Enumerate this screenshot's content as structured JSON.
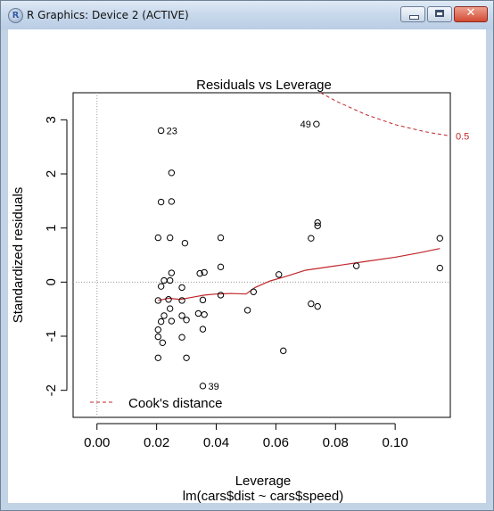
{
  "window": {
    "title": "R Graphics: Device 2 (ACTIVE)",
    "icon_letter": "R",
    "buttons": {
      "minimize": "minimize-icon",
      "maximize": "maximize-icon",
      "close": "close-icon",
      "close_glyph": "✕"
    }
  },
  "chart_data": {
    "type": "scatter",
    "title": "Residuals vs Leverage",
    "xlabel": "Leverage",
    "sublabel": "lm(cars$dist ~ cars$speed)",
    "ylabel": "Standardized residuals",
    "xlim": [
      -0.008,
      0.1185
    ],
    "ylim": [
      -2.5,
      3.5
    ],
    "x_ticks": [
      "0.00",
      "0.02",
      "0.04",
      "0.06",
      "0.08",
      "0.10"
    ],
    "x_tick_values": [
      0.0,
      0.02,
      0.04,
      0.06,
      0.08,
      0.1
    ],
    "y_ticks": [
      "3",
      "2",
      "1",
      "0",
      "-1",
      "-2"
    ],
    "y_tick_values": [
      3,
      2,
      1,
      0,
      -1,
      -2
    ],
    "points": [
      {
        "x": 0.0215,
        "y": 2.8,
        "label": "23"
      },
      {
        "x": 0.0736,
        "y": 2.92,
        "label": "49"
      },
      {
        "x": 0.0355,
        "y": -1.92,
        "label": "39"
      },
      {
        "x": 0.025,
        "y": 2.02
      },
      {
        "x": 0.0215,
        "y": 1.48
      },
      {
        "x": 0.025,
        "y": 1.49
      },
      {
        "x": 0.074,
        "y": 1.1
      },
      {
        "x": 0.074,
        "y": 1.04
      },
      {
        "x": 0.0205,
        "y": 0.82
      },
      {
        "x": 0.0245,
        "y": 0.82
      },
      {
        "x": 0.0295,
        "y": 0.72
      },
      {
        "x": 0.0415,
        "y": 0.82
      },
      {
        "x": 0.0718,
        "y": 0.81
      },
      {
        "x": 0.115,
        "y": 0.81
      },
      {
        "x": 0.087,
        "y": 0.3
      },
      {
        "x": 0.115,
        "y": 0.26
      },
      {
        "x": 0.0415,
        "y": 0.28
      },
      {
        "x": 0.0345,
        "y": 0.16
      },
      {
        "x": 0.036,
        "y": 0.18
      },
      {
        "x": 0.025,
        "y": 0.17
      },
      {
        "x": 0.061,
        "y": 0.14
      },
      {
        "x": 0.0225,
        "y": 0.03
      },
      {
        "x": 0.0245,
        "y": 0.03
      },
      {
        "x": 0.0215,
        "y": -0.08
      },
      {
        "x": 0.0285,
        "y": -0.1
      },
      {
        "x": 0.0525,
        "y": -0.18
      },
      {
        "x": 0.0415,
        "y": -0.24
      },
      {
        "x": 0.0205,
        "y": -0.34
      },
      {
        "x": 0.024,
        "y": -0.32
      },
      {
        "x": 0.0285,
        "y": -0.34
      },
      {
        "x": 0.0355,
        "y": -0.33
      },
      {
        "x": 0.0718,
        "y": -0.4
      },
      {
        "x": 0.074,
        "y": -0.45
      },
      {
        "x": 0.0245,
        "y": -0.49
      },
      {
        "x": 0.0505,
        "y": -0.52
      },
      {
        "x": 0.0225,
        "y": -0.62
      },
      {
        "x": 0.0285,
        "y": -0.62
      },
      {
        "x": 0.034,
        "y": -0.58
      },
      {
        "x": 0.036,
        "y": -0.6
      },
      {
        "x": 0.03,
        "y": -0.7
      },
      {
        "x": 0.0215,
        "y": -0.73
      },
      {
        "x": 0.025,
        "y": -0.72
      },
      {
        "x": 0.0205,
        "y": -0.88
      },
      {
        "x": 0.0355,
        "y": -0.87
      },
      {
        "x": 0.0205,
        "y": -1.01
      },
      {
        "x": 0.0285,
        "y": -1.02
      },
      {
        "x": 0.022,
        "y": -1.12
      },
      {
        "x": 0.0625,
        "y": -1.27
      },
      {
        "x": 0.0205,
        "y": -1.4
      },
      {
        "x": 0.03,
        "y": -1.4
      }
    ],
    "smooth_line": {
      "color": "#c0262b",
      "x": [
        0.0205,
        0.024,
        0.028,
        0.032,
        0.036,
        0.04,
        0.045,
        0.05,
        0.053,
        0.058,
        0.063,
        0.07,
        0.08,
        0.09,
        0.1,
        0.108,
        0.115
      ],
      "y": [
        -0.34,
        -0.3,
        -0.32,
        -0.28,
        -0.24,
        -0.22,
        -0.21,
        -0.22,
        -0.1,
        0.02,
        0.1,
        0.22,
        0.3,
        0.38,
        0.46,
        0.54,
        0.62
      ]
    },
    "cooks_distance": {
      "color": "#c0262b",
      "label": "0.5",
      "x": [
        0.075,
        0.08,
        0.09,
        0.1,
        0.11,
        0.1185
      ],
      "y": [
        3.5,
        3.35,
        3.1,
        2.91,
        2.78,
        2.7
      ]
    },
    "legend": {
      "position": "bottom-left",
      "label": "Cook's distance"
    },
    "reference_lines": {
      "zero_y": 0,
      "zero_x": 0,
      "color": "#9a9a9a"
    },
    "colors": {
      "points": "#000000",
      "smooth": "#c0262b",
      "cooks": "#c0262b"
    }
  }
}
